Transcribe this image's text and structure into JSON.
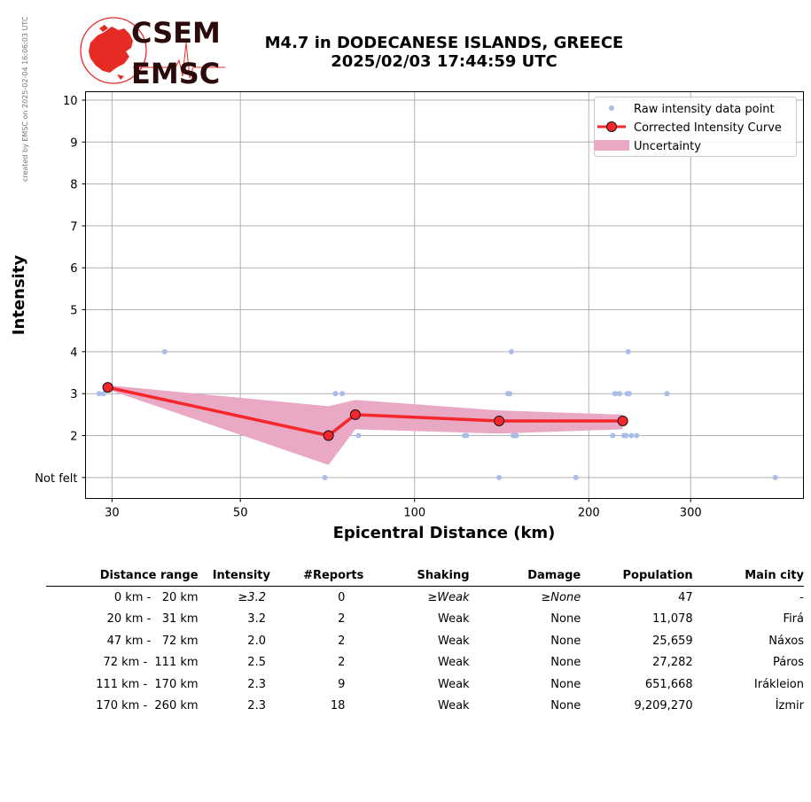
{
  "meta_note": "created by EMSC on 2025-02-04 16:06:03 UTC",
  "logo": {
    "line1": "CSEM",
    "line2": "EMSC"
  },
  "title": {
    "line1": "M4.7 in DODECANESE ISLANDS, GREECE",
    "line2": "2025/02/03 17:44:59 UTC"
  },
  "colors": {
    "raw": "#aabde6",
    "curve": "#f5272d",
    "band": "#e9a8c4",
    "marker_edge": "#111111",
    "logo_red": "#e52b24",
    "logo_dark": "#2a0a0a"
  },
  "chart_data": {
    "type": "scatter",
    "xlabel": "Epicentral Distance (km)",
    "ylabel": "Intensity",
    "x_scale": "log",
    "xlim": [
      27,
      470
    ],
    "ylim": [
      0.5,
      10.2
    ],
    "x_ticks": [
      30,
      50,
      100,
      200,
      300
    ],
    "y_ticks": [
      {
        "v": 1,
        "label": "Not felt"
      },
      {
        "v": 2,
        "label": "2"
      },
      {
        "v": 3,
        "label": "3"
      },
      {
        "v": 4,
        "label": "4"
      },
      {
        "v": 5,
        "label": "5"
      },
      {
        "v": 6,
        "label": "6"
      },
      {
        "v": 7,
        "label": "7"
      },
      {
        "v": 8,
        "label": "8"
      },
      {
        "v": 9,
        "label": "9"
      },
      {
        "v": 10,
        "label": "10"
      }
    ],
    "grid": true,
    "legend": {
      "position": "top-right",
      "entries": [
        "Raw intensity data point",
        "Corrected Intensity Curve",
        "Uncertainty"
      ]
    },
    "series": [
      {
        "name": "Raw intensity data point",
        "points": [
          [
            28.5,
            3
          ],
          [
            29,
            3
          ],
          [
            37,
            4
          ],
          [
            70,
            1
          ],
          [
            73,
            3
          ],
          [
            75,
            3
          ],
          [
            80,
            2
          ],
          [
            122,
            2
          ],
          [
            123,
            2
          ],
          [
            140,
            1
          ],
          [
            145,
            3
          ],
          [
            146,
            3
          ],
          [
            147,
            4
          ],
          [
            148,
            2
          ],
          [
            149,
            2
          ],
          [
            150,
            2
          ],
          [
            190,
            1
          ],
          [
            220,
            2
          ],
          [
            222,
            3
          ],
          [
            226,
            3
          ],
          [
            230,
            2
          ],
          [
            232,
            2
          ],
          [
            233,
            3
          ],
          [
            234,
            4
          ],
          [
            235,
            3
          ],
          [
            237,
            2
          ],
          [
            242,
            2
          ],
          [
            273,
            3
          ],
          [
            420,
            1
          ]
        ]
      },
      {
        "name": "Corrected Intensity Curve",
        "points": [
          [
            29.5,
            3.15
          ],
          [
            71,
            2.0
          ],
          [
            79,
            2.5
          ],
          [
            140,
            2.35
          ],
          [
            229,
            2.35
          ]
        ]
      },
      {
        "name": "Uncertainty",
        "band": [
          [
            29.5,
            3.1,
            3.2
          ],
          [
            71,
            1.3,
            2.7
          ],
          [
            79,
            2.15,
            2.85
          ],
          [
            140,
            2.05,
            2.6
          ],
          [
            229,
            2.15,
            2.5
          ]
        ]
      }
    ]
  },
  "table": {
    "headers": [
      "Distance range",
      "Intensity",
      "#Reports",
      "Shaking",
      "Damage",
      "Population",
      "Main city"
    ],
    "rows": [
      {
        "range": "  0 km -   20 km",
        "intensity": "≥3.2",
        "reports": "0",
        "shaking": "≥Weak",
        "damage": "≥None",
        "population": "47",
        "city": "-"
      },
      {
        "range": " 20 km -   31 km",
        "intensity": "3.2",
        "reports": "2",
        "shaking": "Weak",
        "damage": "None",
        "population": "11,078",
        "city": "Firá"
      },
      {
        "range": " 47 km -   72 km",
        "intensity": "2.0",
        "reports": "2",
        "shaking": "Weak",
        "damage": "None",
        "population": "25,659",
        "city": "Náxos"
      },
      {
        "range": " 72 km -  111 km",
        "intensity": "2.5",
        "reports": "2",
        "shaking": "Weak",
        "damage": "None",
        "population": "27,282",
        "city": "Páros"
      },
      {
        "range": "111 km -  170 km",
        "intensity": "2.3",
        "reports": "9",
        "shaking": "Weak",
        "damage": "None",
        "population": "651,668",
        "city": "Irákleion"
      },
      {
        "range": "170 km -  260 km",
        "intensity": "2.3",
        "reports": "18",
        "shaking": "Weak",
        "damage": "None",
        "population": "9,209,270",
        "city": "İzmir"
      }
    ]
  }
}
